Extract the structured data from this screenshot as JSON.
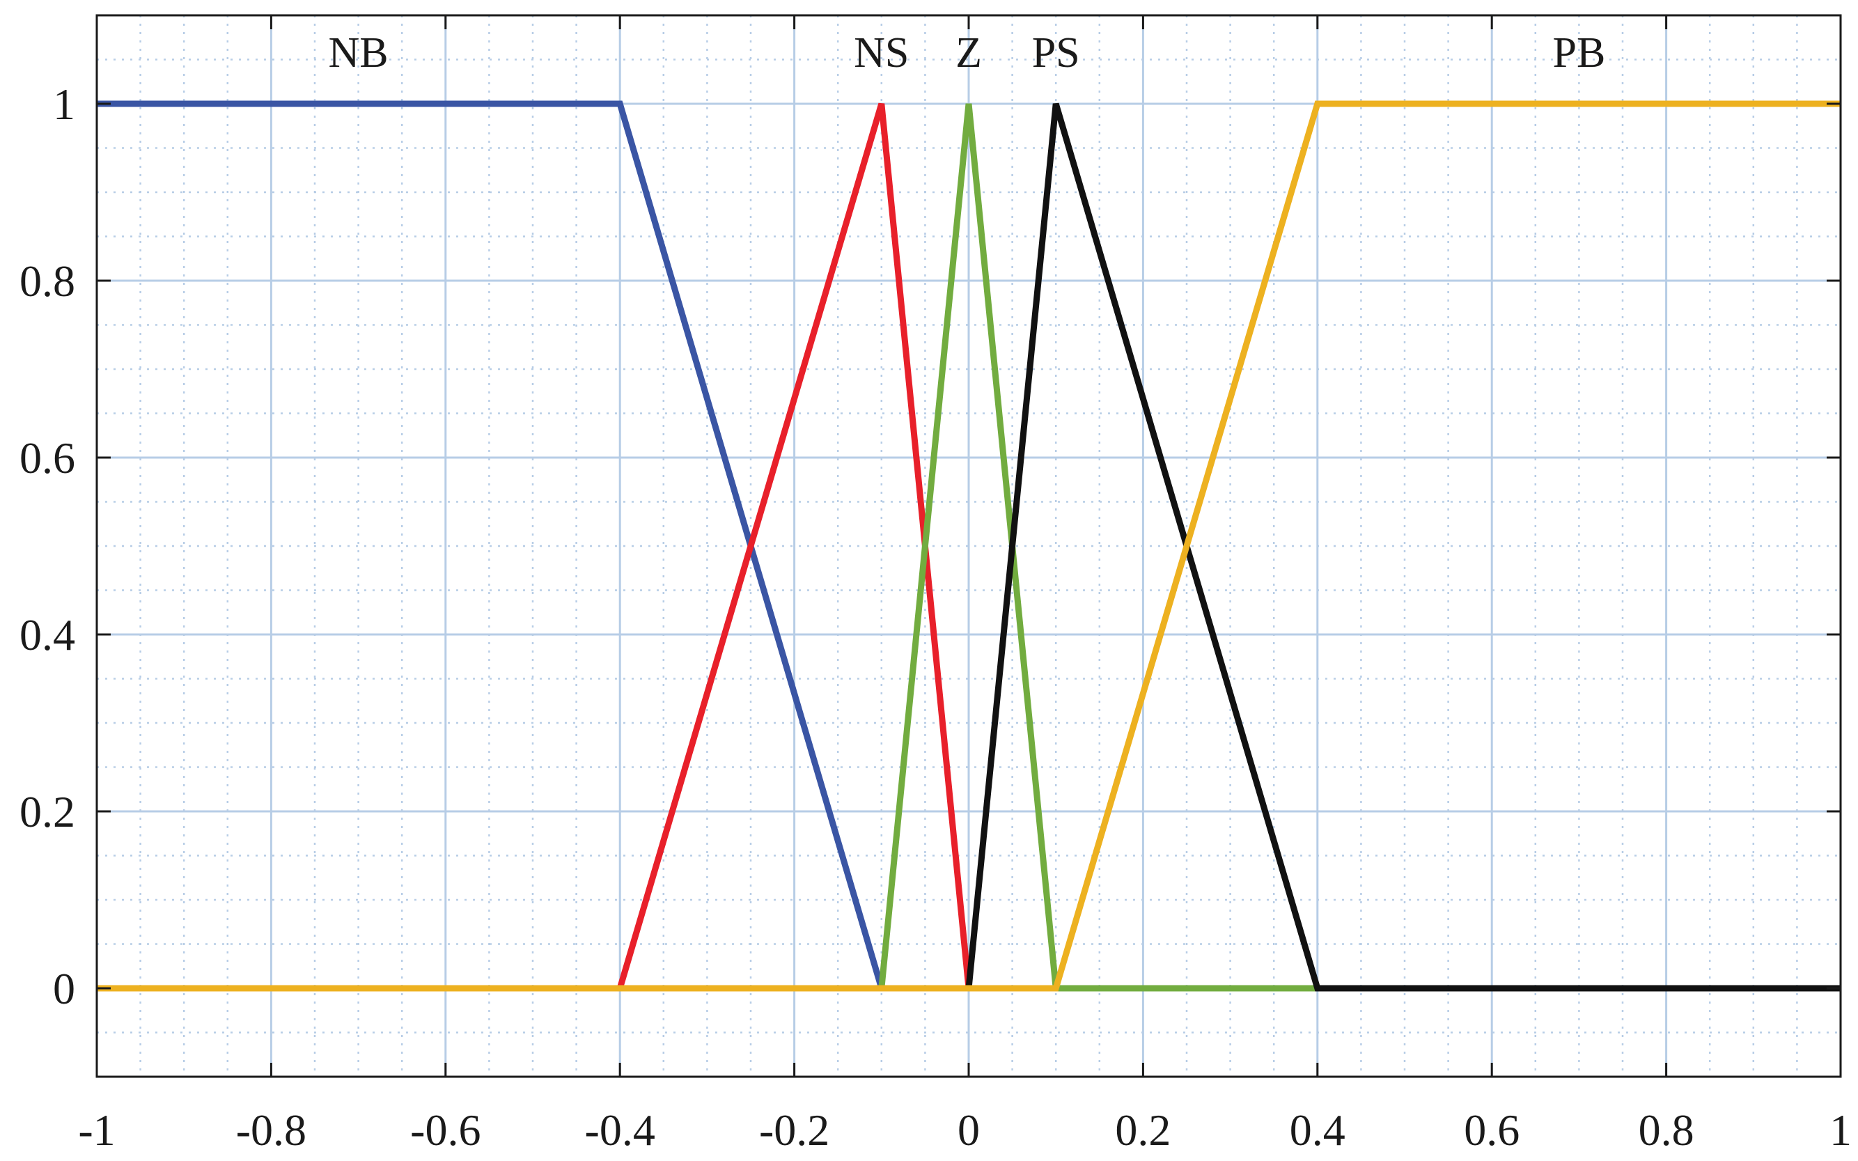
{
  "chart_data": {
    "type": "line",
    "xlim": [
      -1,
      1
    ],
    "ylim": [
      -0.1,
      1.1
    ],
    "grid": true,
    "minor_grid": true,
    "x_ticks": [
      -1,
      -0.8,
      -0.6,
      -0.4,
      -0.2,
      0,
      0.2,
      0.4,
      0.6,
      0.8,
      1
    ],
    "x_tick_labels": [
      "-1",
      "-0.8",
      "-0.6",
      "-0.4",
      "-0.2",
      "0",
      "0.2",
      "0.4",
      "0.6",
      "0.8",
      "1"
    ],
    "y_ticks": [
      0,
      0.2,
      0.4,
      0.6,
      0.8,
      1
    ],
    "y_tick_labels": [
      "0",
      "0.2",
      "0.4",
      "0.6",
      "0.8",
      "1"
    ],
    "series": [
      {
        "name": "NB",
        "color": "#3a55a4",
        "x": [
          -1,
          -0.4,
          -0.1,
          1
        ],
        "y": [
          1,
          1,
          0,
          0
        ],
        "label_x": -0.7
      },
      {
        "name": "NS",
        "color": "#e8202a",
        "x": [
          -1,
          -0.4,
          -0.1,
          0,
          1
        ],
        "y": [
          0,
          0,
          1,
          0,
          0
        ],
        "label_x": -0.1
      },
      {
        "name": "Z",
        "color": "#72ac3f",
        "x": [
          -1,
          -0.1,
          0,
          0.1,
          1
        ],
        "y": [
          0,
          0,
          1,
          0,
          0
        ],
        "label_x": 0
      },
      {
        "name": "PS",
        "color": "#111111",
        "x": [
          -1,
          0,
          0.1,
          0.4,
          1
        ],
        "y": [
          0,
          0,
          1,
          0,
          0
        ],
        "label_x": 0.1
      },
      {
        "name": "PB",
        "color": "#edb120",
        "x": [
          -1,
          0.1,
          0.4,
          1
        ],
        "y": [
          0,
          0,
          1,
          1
        ],
        "label_x": 0.7
      }
    ]
  }
}
